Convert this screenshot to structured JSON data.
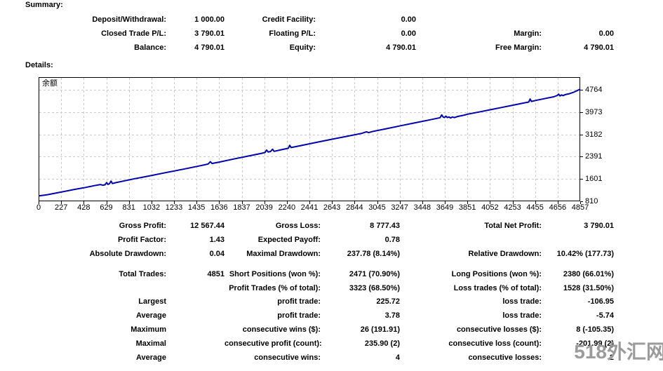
{
  "summary": {
    "heading": "Summary:",
    "rows": [
      {
        "l1": "Deposit/Withdrawal:",
        "v1": "1 000.00",
        "l2": "Credit Facility:",
        "v2": "0.00",
        "l3": "",
        "v3": ""
      },
      {
        "l1": "Closed Trade P/L:",
        "v1": "3 790.01",
        "l2": "Floating P/L:",
        "v2": "0.00",
        "l3": "Margin:",
        "v3": "0.00"
      },
      {
        "l1": "Balance:",
        "v1": "4 790.01",
        "l2": "Equity:",
        "v2": "4 790.01",
        "l3": "Free Margin:",
        "v3": "4 790.01"
      }
    ]
  },
  "details": {
    "heading": "Details:",
    "group1": [
      {
        "l1": "Gross Profit:",
        "v1": "12 567.44",
        "l2": "Gross Loss:",
        "v2": "8 777.43",
        "l3": "Total Net Profit:",
        "v3": "3 790.01"
      },
      {
        "l1": "Profit Factor:",
        "v1": "1.43",
        "l2": "Expected Payoff:",
        "v2": "0.78",
        "l3": "",
        "v3": ""
      },
      {
        "l1": "Absolute Drawdown:",
        "v1": "0.04",
        "l2": "Maximal Drawdown:",
        "v2": "237.78 (8.14%)",
        "l3": "Relative Drawdown:",
        "v3": "10.42% (177.73)"
      }
    ],
    "group2": [
      {
        "l1": "Total Trades:",
        "v1": "4851",
        "l2": "Short Positions (won %):",
        "v2": "2471 (70.90%)",
        "l3": "Long Positions (won %):",
        "v3": "2380 (66.01%)"
      },
      {
        "l1": "",
        "v1": "",
        "l2": "Profit Trades (% of total):",
        "v2": "3323 (68.50%)",
        "l3": "Loss trades (% of total):",
        "v3": "1528 (31.50%)"
      }
    ],
    "group3": [
      {
        "l1": "Largest",
        "v1": "",
        "l2": "profit trade:",
        "v2": "225.72",
        "l3": "loss trade:",
        "v3": "-106.95"
      },
      {
        "l1": "Average",
        "v1": "",
        "l2": "profit trade:",
        "v2": "3.78",
        "l3": "loss trade:",
        "v3": "-5.74"
      },
      {
        "l1": "Maximum",
        "v1": "",
        "l2": "consecutive wins ($):",
        "v2": "26 (191.91)",
        "l3": "consecutive losses ($):",
        "v3": "8 (-105.35)"
      },
      {
        "l1": "Maximal",
        "v1": "",
        "l2": "consecutive profit (count):",
        "v2": "235.90 (2)",
        "l3": "consecutive loss (count):",
        "v3": "-201.99 (2)"
      },
      {
        "l1": "Average",
        "v1": "",
        "l2": "consecutive wins:",
        "v2": "4",
        "l3": "consecutive losses:",
        "v3": "2"
      }
    ]
  },
  "watermark": "518外汇网",
  "chart_data": {
    "type": "line",
    "legend": "余额",
    "x_ticks": [
      0,
      227,
      428,
      629,
      831,
      1032,
      1233,
      1435,
      1636,
      1837,
      2039,
      2240,
      2441,
      2643,
      2844,
      3045,
      3247,
      3448,
      3649,
      3851,
      4052,
      4253,
      4455,
      4656,
      4857
    ],
    "y_ticks": [
      810,
      1601,
      2391,
      3182,
      3973,
      4764
    ],
    "xlim": [
      0,
      4857
    ],
    "ylim": [
      810,
      4764
    ],
    "grid": true,
    "line_color": "#0000b0",
    "grid_color": "#c8c8c8",
    "series": [
      {
        "name": "余额",
        "points": [
          [
            0,
            1000
          ],
          [
            80,
            1045
          ],
          [
            160,
            1105
          ],
          [
            240,
            1165
          ],
          [
            320,
            1230
          ],
          [
            420,
            1300
          ],
          [
            500,
            1365
          ],
          [
            555,
            1405
          ],
          [
            575,
            1380
          ],
          [
            595,
            1395
          ],
          [
            610,
            1475
          ],
          [
            622,
            1410
          ],
          [
            635,
            1430
          ],
          [
            650,
            1525
          ],
          [
            662,
            1440
          ],
          [
            690,
            1470
          ],
          [
            760,
            1525
          ],
          [
            850,
            1600
          ],
          [
            1000,
            1715
          ],
          [
            1150,
            1835
          ],
          [
            1300,
            1950
          ],
          [
            1450,
            2070
          ],
          [
            1520,
            2130
          ],
          [
            1540,
            2215
          ],
          [
            1555,
            2150
          ],
          [
            1575,
            2165
          ],
          [
            1620,
            2200
          ],
          [
            1750,
            2310
          ],
          [
            1900,
            2430
          ],
          [
            2000,
            2510
          ],
          [
            2030,
            2540
          ],
          [
            2045,
            2625
          ],
          [
            2060,
            2555
          ],
          [
            2080,
            2575
          ],
          [
            2098,
            2655
          ],
          [
            2112,
            2580
          ],
          [
            2180,
            2640
          ],
          [
            2240,
            2690
          ],
          [
            2252,
            2795
          ],
          [
            2264,
            2715
          ],
          [
            2340,
            2775
          ],
          [
            2480,
            2890
          ],
          [
            2620,
            3000
          ],
          [
            2760,
            3110
          ],
          [
            2900,
            3220
          ],
          [
            2940,
            3275
          ],
          [
            2960,
            3245
          ],
          [
            3000,
            3290
          ],
          [
            3120,
            3385
          ],
          [
            3250,
            3490
          ],
          [
            3380,
            3595
          ],
          [
            3480,
            3675
          ],
          [
            3560,
            3740
          ],
          [
            3600,
            3775
          ],
          [
            3615,
            3870
          ],
          [
            3628,
            3795
          ],
          [
            3640,
            3780
          ],
          [
            3652,
            3830
          ],
          [
            3665,
            3780
          ],
          [
            3680,
            3800
          ],
          [
            3695,
            3765
          ],
          [
            3710,
            3800
          ],
          [
            3730,
            3780
          ],
          [
            3760,
            3820
          ],
          [
            3810,
            3860
          ],
          [
            3851,
            3900
          ],
          [
            3950,
            3975
          ],
          [
            4050,
            4055
          ],
          [
            4150,
            4135
          ],
          [
            4250,
            4215
          ],
          [
            4350,
            4295
          ],
          [
            4395,
            4330
          ],
          [
            4408,
            4435
          ],
          [
            4420,
            4350
          ],
          [
            4470,
            4395
          ],
          [
            4550,
            4460
          ],
          [
            4620,
            4515
          ],
          [
            4650,
            4560
          ],
          [
            4663,
            4610
          ],
          [
            4675,
            4545
          ],
          [
            4690,
            4580
          ],
          [
            4705,
            4555
          ],
          [
            4720,
            4590
          ],
          [
            4760,
            4625
          ],
          [
            4800,
            4680
          ],
          [
            4830,
            4735
          ],
          [
            4857,
            4790
          ]
        ]
      }
    ]
  }
}
